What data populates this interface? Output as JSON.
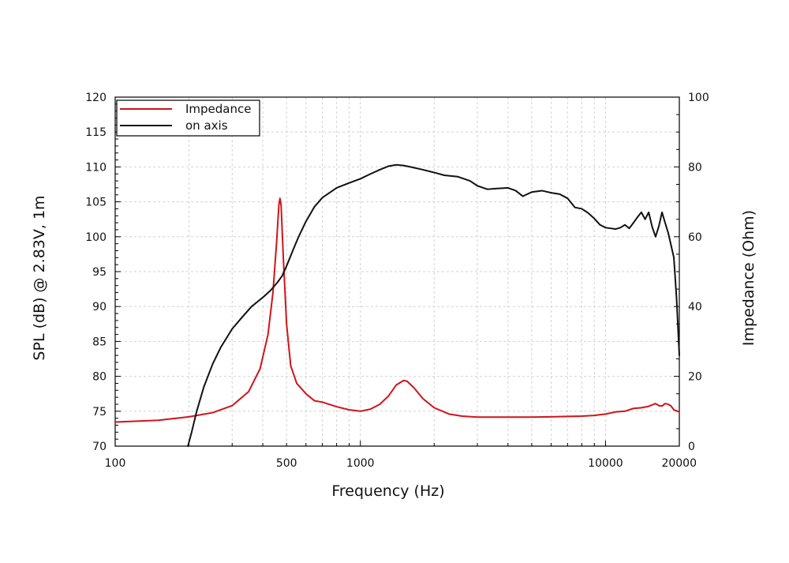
{
  "chart_data": {
    "type": "line",
    "xlabel": "Frequency (Hz)",
    "ylabel": "SPL (dB) @ 2.83V, 1m",
    "y2label": "Impedance (Ohm)",
    "x_scale": "log",
    "xlim": [
      100,
      20000
    ],
    "ylim": [
      70,
      120
    ],
    "y2lim": [
      0,
      100
    ],
    "grid": true,
    "legend_position": "top-left",
    "x_ticks": [
      {
        "value": 100,
        "label": "100"
      },
      {
        "value": 500,
        "label": "500"
      },
      {
        "value": 1000,
        "label": "1000"
      },
      {
        "value": 10000,
        "label": "10000"
      },
      {
        "value": 20000,
        "label": "20000"
      }
    ],
    "y_ticks": [
      {
        "value": 70,
        "label": "70"
      },
      {
        "value": 75,
        "label": "75"
      },
      {
        "value": 80,
        "label": "80"
      },
      {
        "value": 85,
        "label": "85"
      },
      {
        "value": 90,
        "label": "90"
      },
      {
        "value": 95,
        "label": "95"
      },
      {
        "value": 100,
        "label": "100"
      },
      {
        "value": 105,
        "label": "105"
      },
      {
        "value": 110,
        "label": "110"
      },
      {
        "value": 115,
        "label": "115"
      },
      {
        "value": 120,
        "label": "120"
      }
    ],
    "y2_ticks": [
      {
        "value": 0,
        "label": "0"
      },
      {
        "value": 20,
        "label": "20"
      },
      {
        "value": 40,
        "label": "40"
      },
      {
        "value": 60,
        "label": "60"
      },
      {
        "value": 80,
        "label": "80"
      },
      {
        "value": 100,
        "label": "100"
      }
    ],
    "series": [
      {
        "name": "Impedance",
        "axis": "right",
        "color": "#d0141a",
        "points": [
          [
            100,
            6.9
          ],
          [
            150,
            7.4
          ],
          [
            200,
            8.4
          ],
          [
            250,
            9.6
          ],
          [
            300,
            11.6
          ],
          [
            350,
            15.6
          ],
          [
            390,
            22.2
          ],
          [
            420,
            32
          ],
          [
            440,
            44
          ],
          [
            455,
            58
          ],
          [
            465,
            69
          ],
          [
            470,
            71
          ],
          [
            475,
            69
          ],
          [
            485,
            54
          ],
          [
            500,
            35
          ],
          [
            520,
            23
          ],
          [
            550,
            18
          ],
          [
            600,
            15
          ],
          [
            650,
            13
          ],
          [
            700,
            12.6
          ],
          [
            800,
            11.3
          ],
          [
            900,
            10.4
          ],
          [
            1000,
            10
          ],
          [
            1100,
            10.6
          ],
          [
            1200,
            12
          ],
          [
            1300,
            14.3
          ],
          [
            1400,
            17.5
          ],
          [
            1500,
            18.8
          ],
          [
            1550,
            18.6
          ],
          [
            1650,
            16.8
          ],
          [
            1800,
            13.6
          ],
          [
            2000,
            11
          ],
          [
            2300,
            9.2
          ],
          [
            2600,
            8.6
          ],
          [
            3000,
            8.3
          ],
          [
            3500,
            8.3
          ],
          [
            4000,
            8.3
          ],
          [
            5000,
            8.3
          ],
          [
            6000,
            8.4
          ],
          [
            7000,
            8.5
          ],
          [
            8000,
            8.6
          ],
          [
            9000,
            8.8
          ],
          [
            10000,
            9.2
          ],
          [
            11000,
            9.8
          ],
          [
            12000,
            10
          ],
          [
            13000,
            10.8
          ],
          [
            14000,
            11
          ],
          [
            15000,
            11.4
          ],
          [
            16000,
            12.2
          ],
          [
            16500,
            11.6
          ],
          [
            17000,
            11.5
          ],
          [
            17500,
            12.2
          ],
          [
            18000,
            12
          ],
          [
            18500,
            11.5
          ],
          [
            19000,
            10.4
          ],
          [
            20000,
            9.8
          ]
        ]
      },
      {
        "name": "on axis",
        "axis": "left",
        "color": "#111111",
        "points": [
          [
            198,
            70
          ],
          [
            205,
            72
          ],
          [
            215,
            75
          ],
          [
            230,
            78.5
          ],
          [
            250,
            81.8
          ],
          [
            270,
            84.2
          ],
          [
            300,
            86.8
          ],
          [
            330,
            88.5
          ],
          [
            360,
            90
          ],
          [
            400,
            91.3
          ],
          [
            430,
            92.3
          ],
          [
            460,
            93.5
          ],
          [
            480,
            94.4
          ],
          [
            500,
            95.8
          ],
          [
            530,
            98
          ],
          [
            560,
            100
          ],
          [
            600,
            102.2
          ],
          [
            650,
            104.3
          ],
          [
            700,
            105.6
          ],
          [
            800,
            107
          ],
          [
            900,
            107.7
          ],
          [
            1000,
            108.3
          ],
          [
            1100,
            109
          ],
          [
            1200,
            109.6
          ],
          [
            1300,
            110.1
          ],
          [
            1400,
            110.3
          ],
          [
            1500,
            110.2
          ],
          [
            1600,
            110
          ],
          [
            1800,
            109.6
          ],
          [
            2000,
            109.2
          ],
          [
            2200,
            108.8
          ],
          [
            2500,
            108.6
          ],
          [
            2800,
            108
          ],
          [
            3000,
            107.3
          ],
          [
            3300,
            106.8
          ],
          [
            3600,
            106.9
          ],
          [
            4000,
            107
          ],
          [
            4300,
            106.6
          ],
          [
            4600,
            105.8
          ],
          [
            5000,
            106.4
          ],
          [
            5500,
            106.6
          ],
          [
            6000,
            106.3
          ],
          [
            6500,
            106.1
          ],
          [
            7000,
            105.5
          ],
          [
            7500,
            104.2
          ],
          [
            8000,
            104
          ],
          [
            8500,
            103.4
          ],
          [
            9000,
            102.6
          ],
          [
            9500,
            101.7
          ],
          [
            10000,
            101.3
          ],
          [
            10500,
            101.2
          ],
          [
            11000,
            101.1
          ],
          [
            11500,
            101.3
          ],
          [
            12000,
            101.7
          ],
          [
            12500,
            101.2
          ],
          [
            13000,
            102
          ],
          [
            13500,
            102.8
          ],
          [
            14000,
            103.5
          ],
          [
            14500,
            102.5
          ],
          [
            15000,
            103.5
          ],
          [
            15500,
            101.4
          ],
          [
            16000,
            100
          ],
          [
            16500,
            101.5
          ],
          [
            17000,
            103.5
          ],
          [
            17500,
            102
          ],
          [
            18000,
            100.6
          ],
          [
            18500,
            98.8
          ],
          [
            19000,
            97
          ],
          [
            19500,
            91
          ],
          [
            20000,
            83
          ]
        ]
      }
    ]
  }
}
